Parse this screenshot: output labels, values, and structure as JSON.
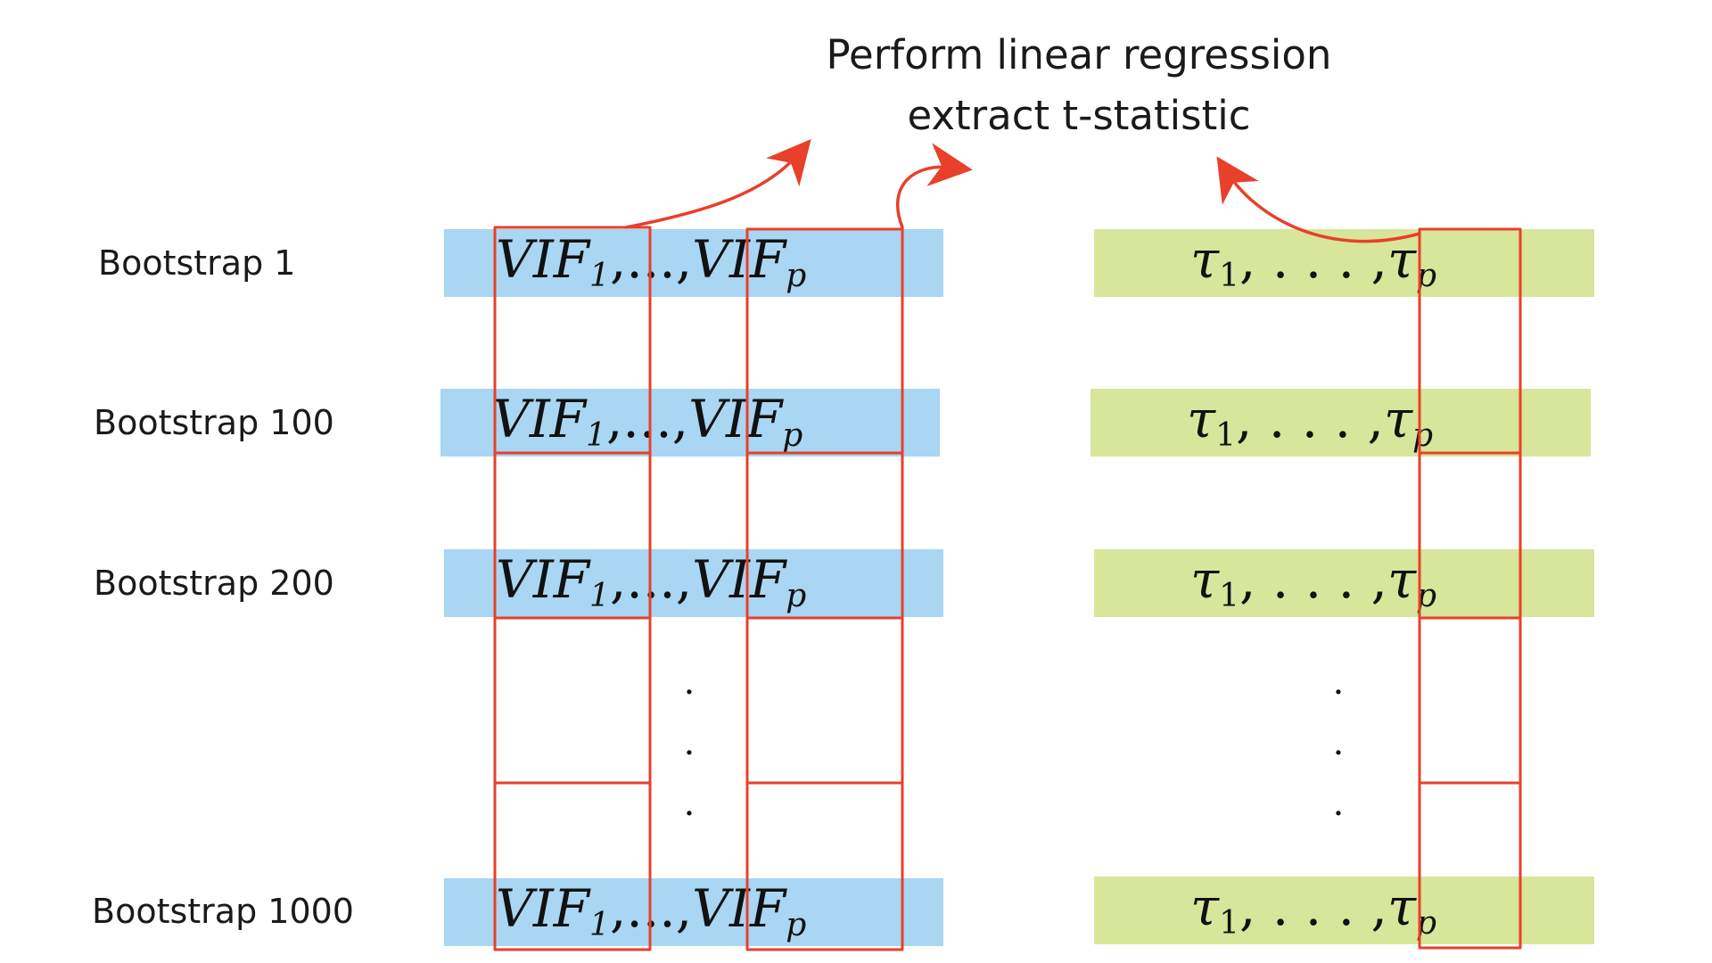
{
  "title": {
    "line1": "Perform linear regression",
    "line2": "extract t-statistic"
  },
  "rows": [
    {
      "label": "Bootstrap 1"
    },
    {
      "label": "Bootstrap 100"
    },
    {
      "label": "Bootstrap 200"
    },
    {
      "label": "Bootstrap 1000"
    }
  ],
  "vif_cells": {
    "first_base": "VIF",
    "first_sub": "1",
    "comma1": ",",
    "ellipsis": "...",
    "comma2": ",",
    "last_base": "VIF",
    "last_sub": "p"
  },
  "tau_cells": {
    "first_base": "τ",
    "first_sub": "1",
    "ellipsis": ", . . . ,",
    "last_base": "τ",
    "last_sub": "p"
  },
  "ellipsis_vertical": "·",
  "colors": {
    "vif_band": "#a9d6f2",
    "tau_band": "#d7e69a",
    "highlight_box": "#e8402a",
    "arrow": "#e8402a",
    "text": "#1a1a1a"
  }
}
